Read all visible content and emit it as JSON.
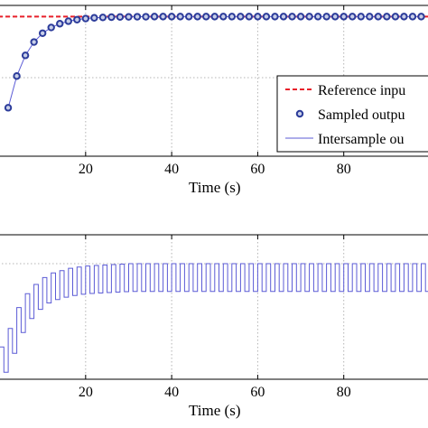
{
  "colors": {
    "reference": "#e8202a",
    "sampled_edge": "#2c3c9a",
    "sampled_face": "#c8cfe8",
    "intersample": "#5b5bd6",
    "grid": "#b4b4b4",
    "axes": "#000000"
  },
  "chart_data": [
    {
      "type": "line",
      "xlabel": "Time (s)",
      "ylabel": "",
      "xlim": [
        -2,
        100
      ],
      "ylim": [
        0,
        1.08
      ],
      "grid": true,
      "legend_position": "bottom-right",
      "x_ticks": [
        20,
        40,
        60,
        80
      ],
      "x_tick_labels": [
        "20",
        "40",
        "60",
        "80"
      ],
      "legend": [
        "Reference inpu",
        "Sampled outpu",
        "Intersample ou"
      ],
      "series": [
        {
          "name": "Reference inpu",
          "style": "dashed",
          "x": [
            -2,
            100
          ],
          "y": [
            1.0,
            1.0
          ]
        },
        {
          "name": "Sampled outpu",
          "style": "markers",
          "sample_period": 2,
          "time_constant": 4.7,
          "x": [
            2,
            4,
            6,
            8,
            10,
            12,
            14,
            16,
            18,
            20,
            22,
            24,
            26,
            28,
            30,
            32,
            34,
            36,
            38,
            40,
            42,
            44,
            46,
            48,
            50,
            52,
            54,
            56,
            58,
            60,
            62,
            64,
            66,
            68,
            70,
            72,
            74,
            76,
            78,
            80,
            82,
            84,
            86,
            88,
            90,
            92,
            94,
            96,
            98
          ],
          "y": [
            0.347,
            0.574,
            0.722,
            0.818,
            0.881,
            0.922,
            0.949,
            0.967,
            0.978,
            0.986,
            0.991,
            0.994,
            0.996,
            0.997,
            0.998,
            0.999,
            0.999,
            1.0,
            1.0,
            1.0,
            1.0,
            1.0,
            1.0,
            1.0,
            1.0,
            1.0,
            1.0,
            1.0,
            1.0,
            1.0,
            1.0,
            1.0,
            1.0,
            1.0,
            1.0,
            1.0,
            1.0,
            1.0,
            1.0,
            1.0,
            1.0,
            1.0,
            1.0,
            1.0,
            1.0,
            1.0,
            1.0,
            1.0,
            1.0
          ]
        },
        {
          "name": "Intersample ou",
          "style": "line",
          "x": [
            2,
            4,
            6,
            8,
            10,
            12,
            14,
            16,
            18,
            20,
            22,
            24,
            26,
            28,
            30,
            32,
            34,
            36,
            38,
            40,
            42,
            44,
            46,
            48,
            50,
            52,
            54,
            56,
            58,
            60,
            62,
            64,
            66,
            68,
            70,
            72,
            74,
            76,
            78,
            80,
            82,
            84,
            86,
            88,
            90,
            92,
            94,
            96,
            98
          ],
          "y": [
            0.347,
            0.574,
            0.722,
            0.818,
            0.881,
            0.922,
            0.949,
            0.967,
            0.978,
            0.986,
            0.991,
            0.994,
            0.996,
            0.997,
            0.998,
            0.999,
            0.999,
            1.0,
            1.0,
            1.0,
            1.0,
            1.0,
            1.0,
            1.0,
            1.0,
            1.0,
            1.0,
            1.0,
            1.0,
            1.0,
            1.0,
            1.0,
            1.0,
            1.0,
            1.0,
            1.0,
            1.0,
            1.0,
            1.0,
            1.0,
            1.0,
            1.0,
            1.0,
            1.0,
            1.0,
            1.0,
            1.0,
            1.0,
            1.0
          ]
        }
      ]
    },
    {
      "type": "line",
      "xlabel": "Time (s)",
      "ylabel": "",
      "xlim": [
        -2,
        100
      ],
      "ylim": [
        0,
        1.25
      ],
      "grid": true,
      "x_ticks": [
        20,
        40,
        60,
        80
      ],
      "x_tick_labels": [
        "20",
        "40",
        "60",
        "80"
      ],
      "series": [
        {
          "name": "",
          "style": "step",
          "period": 1,
          "time_constant": 4.7,
          "ripple": 0.24,
          "x": [
            0,
            2,
            4,
            6,
            8,
            10,
            12,
            16,
            20,
            30,
            40,
            60,
            80,
            100
          ],
          "y_low": [
            0.0,
            0.12,
            0.33,
            0.48,
            0.57,
            0.64,
            0.68,
            0.72,
            0.74,
            0.76,
            0.76,
            0.76,
            0.76,
            0.76
          ],
          "y_high": [
            0.28,
            0.44,
            0.62,
            0.74,
            0.82,
            0.88,
            0.92,
            0.96,
            0.98,
            1.0,
            1.0,
            1.0,
            1.0,
            1.0
          ]
        }
      ]
    }
  ]
}
